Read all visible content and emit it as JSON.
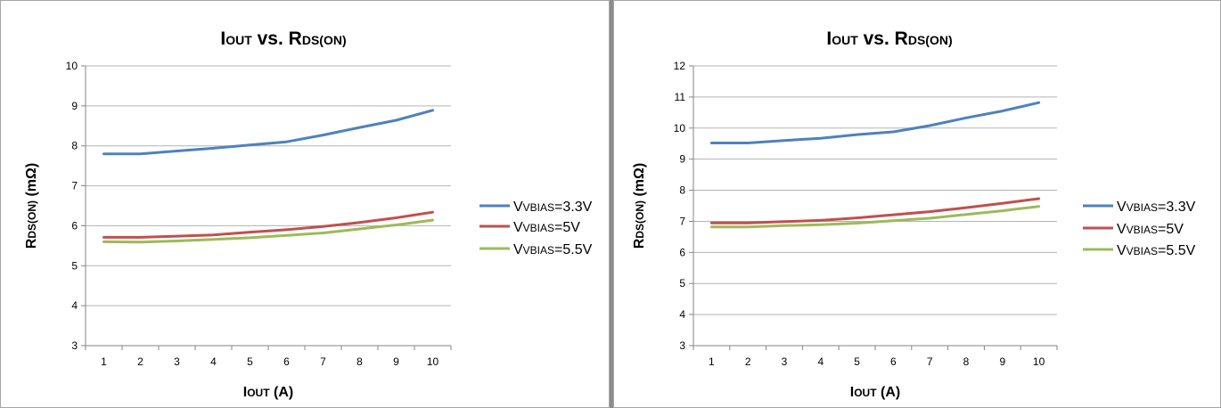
{
  "chart_data": [
    {
      "type": "line",
      "title": "IOUT vs. RDS(ON)",
      "title_main": "I",
      "title_sub": "OUT",
      "title_mid": " vs. R",
      "title_sub2": "DS(ON)",
      "xlabel_main": "I",
      "xlabel_sub": "OUT",
      "xlabel_rest": " (A)",
      "ylabel_main": "R",
      "ylabel_sub": "DS(ON)",
      "ylabel_rest": " (mΩ)",
      "categories": [
        1,
        2,
        3,
        4,
        5,
        6,
        7,
        8,
        9,
        10
      ],
      "ylim": [
        3,
        10
      ],
      "yticks": [
        3,
        4,
        5,
        6,
        7,
        8,
        9,
        10
      ],
      "grid": true,
      "legend_position": "right",
      "series": [
        {
          "name": "VVBIAS=3.3V",
          "label_main": "V",
          "label_sub": "VBIAS",
          "label_rest": "=3.3V",
          "color": "#4f81bd",
          "values": [
            7.8,
            7.8,
            7.87,
            7.94,
            8.02,
            8.1,
            8.27,
            8.46,
            8.64,
            8.89
          ]
        },
        {
          "name": "VVBIAS=5V",
          "label_main": "V",
          "label_sub": "VBIAS",
          "label_rest": "=5V",
          "color": "#c0504d",
          "values": [
            5.71,
            5.71,
            5.74,
            5.77,
            5.84,
            5.9,
            5.98,
            6.08,
            6.2,
            6.34
          ]
        },
        {
          "name": "VVBIAS=5.5V",
          "label_main": "V",
          "label_sub": "VBIAS",
          "label_rest": "=5.5V",
          "color": "#9bbb59",
          "values": [
            5.6,
            5.59,
            5.62,
            5.66,
            5.7,
            5.76,
            5.82,
            5.92,
            6.02,
            6.14
          ]
        }
      ]
    },
    {
      "type": "line",
      "title": "IOUT vs. RDS(ON)",
      "title_main": "I",
      "title_sub": "OUT",
      "title_mid": " vs. R",
      "title_sub2": "DS(ON)",
      "xlabel_main": "I",
      "xlabel_sub": "OUT",
      "xlabel_rest": " (A)",
      "ylabel_main": "R",
      "ylabel_sub": "DS(ON)",
      "ylabel_rest": " (mΩ)",
      "categories": [
        1,
        2,
        3,
        4,
        5,
        6,
        7,
        8,
        9,
        10
      ],
      "ylim": [
        3,
        12
      ],
      "yticks": [
        3,
        4,
        5,
        6,
        7,
        8,
        9,
        10,
        11,
        12
      ],
      "grid": true,
      "legend_position": "right",
      "series": [
        {
          "name": "VVBIAS=3.3V",
          "label_main": "V",
          "label_sub": "VBIAS",
          "label_rest": "=3.3V",
          "color": "#4f81bd",
          "values": [
            9.52,
            9.52,
            9.6,
            9.67,
            9.79,
            9.88,
            10.08,
            10.33,
            10.55,
            10.82
          ]
        },
        {
          "name": "VVBIAS=5V",
          "label_main": "V",
          "label_sub": "VBIAS",
          "label_rest": "=5V",
          "color": "#c0504d",
          "values": [
            6.95,
            6.95,
            6.99,
            7.03,
            7.11,
            7.21,
            7.31,
            7.44,
            7.58,
            7.73
          ]
        },
        {
          "name": "VVBIAS=5.5V",
          "label_main": "V",
          "label_sub": "VBIAS",
          "label_rest": "=5.5V",
          "color": "#9bbb59",
          "values": [
            6.82,
            6.82,
            6.86,
            6.89,
            6.94,
            7.02,
            7.1,
            7.22,
            7.34,
            7.48
          ]
        }
      ]
    }
  ]
}
